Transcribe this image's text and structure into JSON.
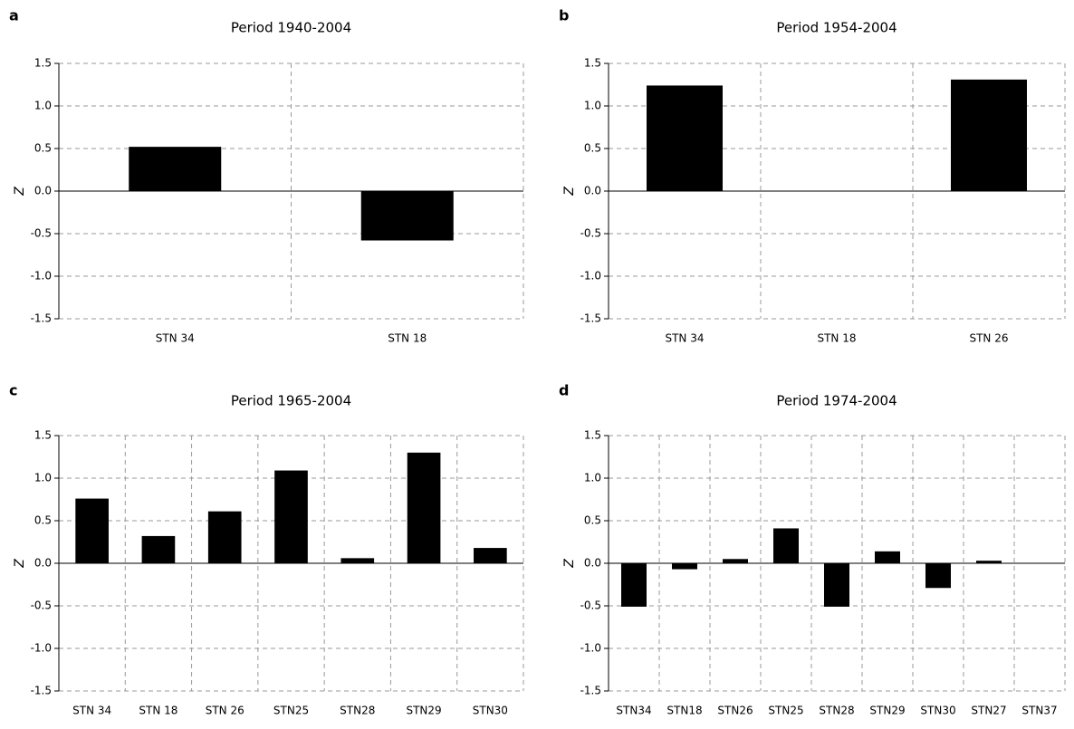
{
  "chart_data": [
    {
      "type": "bar",
      "panel": "a",
      "title": "Period 1940-2004",
      "ylabel": "Z",
      "color": "#000000",
      "grid": true,
      "categories": [
        "STN 34",
        "STN 18"
      ],
      "values": [
        0.52,
        -0.58
      ],
      "ylim": [
        -1.5,
        1.5
      ],
      "yticks": [
        {
          "value": -1.5,
          "label": "-1.5"
        },
        {
          "value": -1.0,
          "label": "-1.0"
        },
        {
          "value": -0.5,
          "label": "-0.5"
        },
        {
          "value": 0,
          "label": "0.0"
        },
        {
          "value": 0.5,
          "label": "0.5"
        },
        {
          "value": 1.0,
          "label": "1.0"
        },
        {
          "value": 1.5,
          "label": "1.5"
        }
      ]
    },
    {
      "type": "bar",
      "panel": "b",
      "title": "Period 1954-2004",
      "ylabel": "Z",
      "color": "#000000",
      "grid": true,
      "categories": [
        "STN 34",
        "STN 18",
        "STN 26"
      ],
      "values": [
        1.24,
        0,
        1.31
      ],
      "ylim": [
        -1.5,
        1.5
      ],
      "yticks": [
        {
          "value": -1.5,
          "label": "-1.5"
        },
        {
          "value": -1.0,
          "label": "-1.0"
        },
        {
          "value": -0.5,
          "label": "-0.5"
        },
        {
          "value": 0,
          "label": "0.0"
        },
        {
          "value": 0.5,
          "label": "0.5"
        },
        {
          "value": 1.0,
          "label": "1.0"
        },
        {
          "value": 1.5,
          "label": "1.5"
        }
      ]
    },
    {
      "type": "bar",
      "panel": "c",
      "title": "Period 1965-2004",
      "ylabel": "Z",
      "color": "#000000",
      "grid": true,
      "categories": [
        "STN 34",
        "STN 18",
        "STN 26",
        "STN25",
        "STN28",
        "STN29",
        "STN30"
      ],
      "values": [
        0.76,
        0.32,
        0.61,
        1.09,
        0.06,
        1.3,
        0.18
      ],
      "ylim": [
        -1.5,
        1.5
      ],
      "yticks": [
        {
          "value": -1.5,
          "label": "-1.5"
        },
        {
          "value": -1.0,
          "label": "-1.0"
        },
        {
          "value": -0.5,
          "label": "-0.5"
        },
        {
          "value": 0,
          "label": "0.0"
        },
        {
          "value": 0.5,
          "label": "0.5"
        },
        {
          "value": 1.0,
          "label": "1.0"
        },
        {
          "value": 1.5,
          "label": "1.5"
        }
      ]
    },
    {
      "type": "bar",
      "panel": "d",
      "title": "Period 1974-2004",
      "ylabel": "Z",
      "color": "#000000",
      "grid": true,
      "categories": [
        "STN34",
        "STN18",
        "STN26",
        "STN25",
        "STN28",
        "STN29",
        "STN30",
        "STN27",
        "STN37"
      ],
      "values": [
        -0.51,
        -0.07,
        0.05,
        0.41,
        -0.51,
        0.14,
        -0.29,
        0.03,
        0
      ],
      "ylim": [
        -1.5,
        1.5
      ],
      "yticks": [
        {
          "value": -1.5,
          "label": "-1.5"
        },
        {
          "value": -1.0,
          "label": "-1.0"
        },
        {
          "value": -0.5,
          "label": "-0.5"
        },
        {
          "value": 0,
          "label": "0.0"
        },
        {
          "value": 0.5,
          "label": "0.5"
        },
        {
          "value": 1.0,
          "label": "1.0"
        },
        {
          "value": 1.5,
          "label": "1.5"
        }
      ]
    }
  ]
}
